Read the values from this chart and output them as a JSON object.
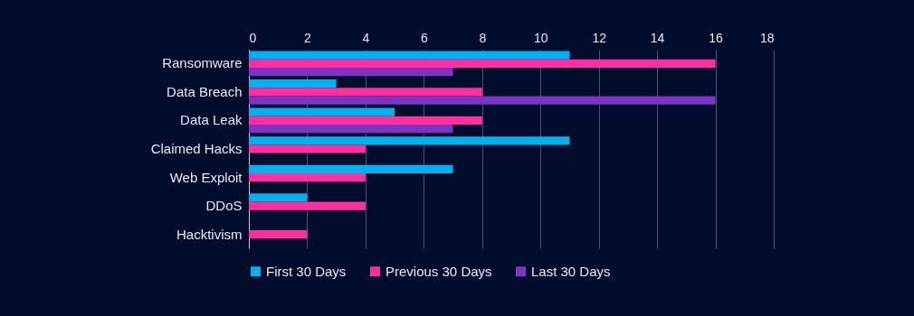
{
  "chart_data": {
    "type": "bar",
    "orientation": "horizontal",
    "categories": [
      "Ransomware",
      "Data Breach",
      "Data Leak",
      "Claimed Hacks",
      "Web Exploit",
      "DDoS",
      "Hacktivism"
    ],
    "series": [
      {
        "name": "First 30 Days",
        "color": "#00b0f0",
        "values": [
          11,
          3,
          5,
          11,
          7,
          2,
          0
        ]
      },
      {
        "name": "Previous 30 Days",
        "color": "#ff2fa0",
        "values": [
          16,
          8,
          8,
          4,
          4,
          4,
          2
        ]
      },
      {
        "name": "Last 30 Days",
        "color": "#7b35c0",
        "values": [
          7,
          16,
          7,
          0,
          0,
          0,
          0
        ]
      }
    ],
    "xlim": [
      0,
      18
    ],
    "xticks": [
      0,
      2,
      4,
      6,
      8,
      10,
      12,
      14,
      16,
      18
    ],
    "grid": "x",
    "legend": "bottom"
  }
}
